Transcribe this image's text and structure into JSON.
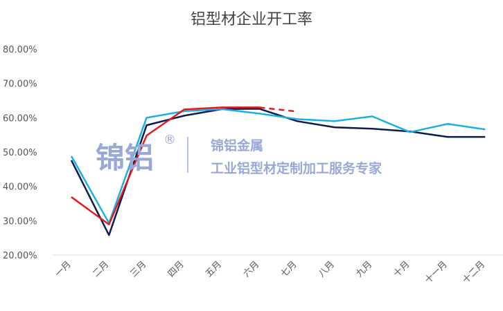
{
  "chart_data": {
    "type": "line",
    "title": "铝型材企业开工率",
    "categories": [
      "一月",
      "二月",
      "三月",
      "四月",
      "五月",
      "六月",
      "七月",
      "八月",
      "九月",
      "十月",
      "十一月",
      "十二月"
    ],
    "y_ticks": [
      "20.00%",
      "30.00%",
      "40.00%",
      "50.00%",
      "60.00%",
      "70.00%",
      "80.00%"
    ],
    "ylim": [
      20,
      80
    ],
    "grid": false,
    "series": [
      {
        "color": "#0d1b4f",
        "values": [
          47.6,
          25.8,
          57.8,
          60.6,
          62.5,
          62.6,
          59.0,
          57.2,
          56.8,
          56.0,
          54.4,
          54.4
        ]
      },
      {
        "color": "#1ab0e6",
        "values": [
          48.8,
          29.3,
          60.0,
          61.9,
          62.5,
          61.2,
          59.6,
          59.0,
          60.4,
          55.8,
          58.2,
          56.6
        ]
      },
      {
        "color": "#e8191e",
        "values": [
          36.9,
          28.9,
          54.8,
          62.4,
          63.0,
          63.0,
          null,
          null,
          null,
          null,
          null,
          null
        ],
        "dashed_forecast": {
          "from_index": 5,
          "values": [
            63.0,
            61.8
          ]
        }
      }
    ]
  },
  "watermark": {
    "logo": "锦铝",
    "mark": "®",
    "line1": "锦铝金属",
    "line2": "工业铝型材定制加工服务专家"
  }
}
